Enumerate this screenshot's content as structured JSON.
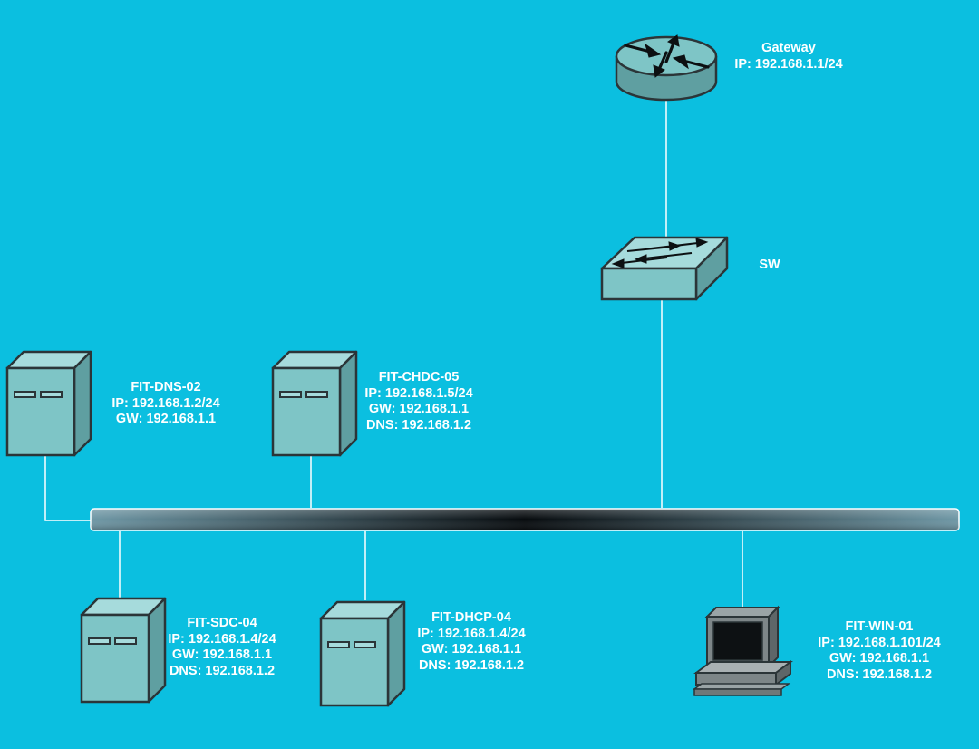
{
  "colors": {
    "background": "#0bbfe0",
    "device_fill": "#7ec5c6",
    "device_stroke": "#2b3538",
    "link": "#ffffff"
  },
  "nodes": {
    "gateway": {
      "icon": "router-icon",
      "name": "Gateway",
      "ip": "IP: 192.168.1.1/24"
    },
    "switch": {
      "icon": "switch-icon",
      "name": "SW"
    },
    "dns": {
      "icon": "server-icon",
      "name": "FIT-DNS-02",
      "ip": "IP: 192.168.1.2/24",
      "gw": "GW: 192.168.1.1"
    },
    "chdc": {
      "icon": "server-icon",
      "name": "FIT-CHDC-05",
      "ip": "IP: 192.168.1.5/24",
      "gw": "GW: 192.168.1.1",
      "dns": "DNS: 192.168.1.2"
    },
    "sdc": {
      "icon": "server-icon",
      "name": "FIT-SDC-04",
      "ip": "IP: 192.168.1.4/24",
      "gw": "GW: 192.168.1.1",
      "dns": "DNS: 192.168.1.2"
    },
    "dhcp": {
      "icon": "server-icon",
      "name": "FIT-DHCP-04",
      "ip": "IP: 192.168.1.4/24",
      "gw": "GW: 192.168.1.1",
      "dns": "DNS: 192.168.1.2"
    },
    "win": {
      "icon": "workstation-icon",
      "name": "FIT-WIN-01",
      "ip": "IP: 192.168.1.101/24",
      "gw": "GW: 192.168.1.1",
      "dns": "DNS: 192.168.1.2"
    }
  }
}
